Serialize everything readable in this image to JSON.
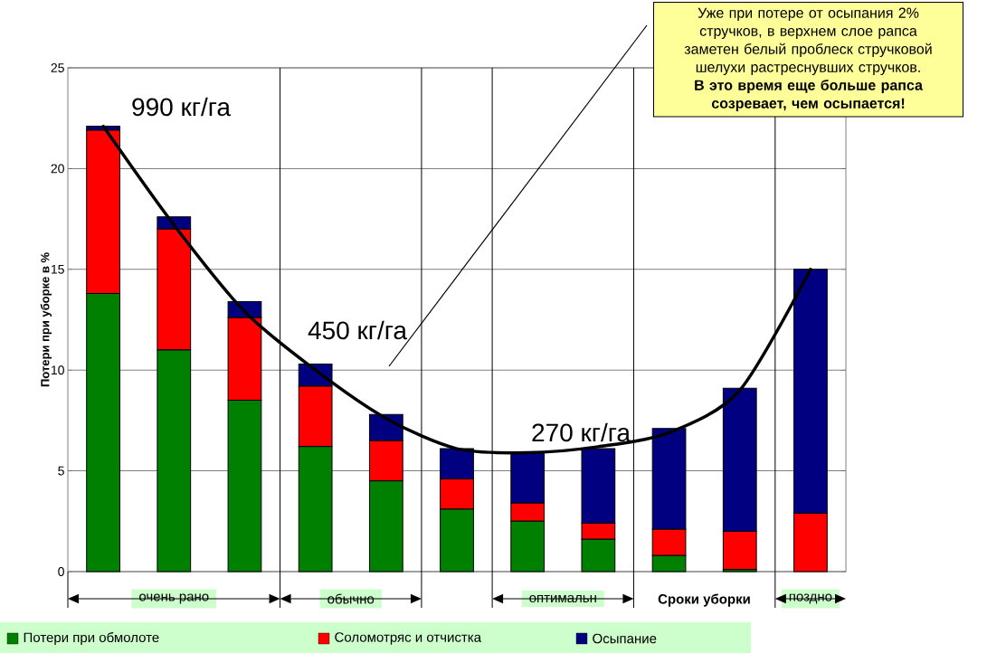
{
  "chart_data": {
    "type": "bar",
    "stacked": true,
    "ylabel": "Потери при уборке в %",
    "xlabel": "Сроки уборки",
    "categories": [
      null,
      null,
      null,
      null,
      null,
      null,
      null,
      null,
      null,
      null,
      null
    ],
    "series": [
      {
        "name": "Потери при обмолоте",
        "color": "#008000",
        "values": [
          13.8,
          11.0,
          8.5,
          6.2,
          4.5,
          3.1,
          2.5,
          1.6,
          0.8,
          0.1,
          0
        ]
      },
      {
        "name": "Соломотряс и отчистка",
        "color": "#ff0000",
        "values": [
          8.1,
          6.0,
          4.1,
          3.0,
          2.0,
          1.5,
          0.9,
          0.8,
          1.3,
          1.9,
          2.9
        ]
      },
      {
        "name": "Осыпание",
        "color": "#000080",
        "values": [
          0.2,
          0.6,
          0.8,
          1.1,
          1.3,
          1.5,
          2.5,
          3.7,
          5.0,
          7.1,
          12.1
        ]
      },
      {
        "type": "line",
        "color": "#000000",
        "values": [
          22.1,
          17.2,
          12.9,
          10.0,
          7.6,
          6.1,
          5.9,
          6.2,
          6.9,
          9.0,
          15.0
        ]
      }
    ],
    "ylim": [
      0,
      25
    ],
    "yticks": [
      0,
      5,
      10,
      15,
      20,
      25
    ],
    "grid": "y",
    "legend": "bottom",
    "tick_labels": "y",
    "marker": "none",
    "annotations": [
      "990 кг/га",
      "450 кг/га",
      "270 кг/га",
      "Уже при потере от осыпания 2% стручков, в верхнем слое рапса заметен белый проблеск стручковой шелухи растреснувших стручков.",
      "В это время еще больше рапса созревает, чем осыпается!",
      "очень рано",
      "обычно",
      "оптимальн",
      "поздно"
    ]
  }
}
